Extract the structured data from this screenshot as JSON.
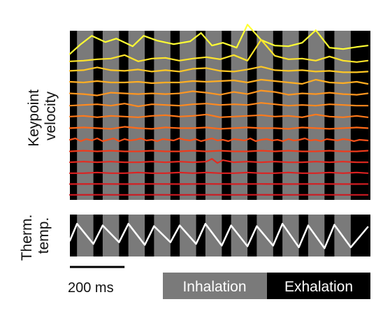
{
  "chart_data": [
    {
      "type": "line",
      "panel": "keypoint-velocity",
      "ylabel_lines": [
        "Keypoint",
        "velocity"
      ],
      "background_color": "#000000",
      "phase_colors": {
        "inhalation": "#7a7a7a",
        "exhalation": "#000000"
      },
      "inhalation_periods_ms": [
        [
          26,
          86
        ],
        [
          120,
          180
        ],
        [
          214,
          274
        ],
        [
          308,
          368
        ],
        [
          402,
          462
        ],
        [
          496,
          556
        ],
        [
          590,
          650
        ],
        [
          684,
          744
        ],
        [
          778,
          838
        ],
        [
          872,
          932
        ],
        [
          968,
          1028
        ]
      ],
      "time_range_ms": [
        0,
        1100
      ],
      "traces": [
        {
          "color": "#ffff33",
          "x": [
            0,
            40,
            80,
            130,
            170,
            230,
            270,
            320,
            380,
            440,
            480,
            520,
            560,
            610,
            650,
            700,
            750,
            800,
            850,
            900,
            950,
            1000,
            1050,
            1090
          ],
          "y": [
            26,
            40,
            52,
            43,
            48,
            37,
            52,
            45,
            40,
            44,
            56,
            38,
            42,
            35,
            68,
            46,
            38,
            37,
            42,
            60,
            35,
            33,
            36,
            38
          ]
        },
        {
          "color": "#ffe52a",
          "x": [
            0,
            50,
            100,
            150,
            200,
            250,
            300,
            350,
            400,
            450,
            500,
            550,
            600,
            650,
            700,
            750,
            800,
            850,
            900,
            950,
            1000,
            1050,
            1090
          ],
          "y": [
            29,
            30,
            32,
            33,
            38,
            29,
            33,
            34,
            30,
            33,
            35,
            32,
            38,
            30,
            60,
            37,
            32,
            33,
            30,
            36,
            30,
            28,
            30
          ]
        },
        {
          "color": "#ffc824",
          "x": [
            0,
            50,
            100,
            150,
            200,
            250,
            300,
            350,
            400,
            450,
            500,
            550,
            600,
            650,
            700,
            750,
            800,
            850,
            900,
            950,
            1000,
            1050,
            1090
          ],
          "y": [
            29,
            30,
            34,
            30,
            29,
            31,
            28,
            30,
            28,
            32,
            33,
            29,
            28,
            31,
            35,
            30,
            29,
            30,
            28,
            29,
            27,
            27,
            28
          ]
        },
        {
          "color": "#ffae22",
          "x": [
            0,
            50,
            100,
            150,
            200,
            250,
            300,
            350,
            400,
            450,
            500,
            550,
            600,
            650,
            700,
            750,
            800,
            850,
            900,
            950,
            1000,
            1050,
            1090
          ],
          "y": [
            27,
            26,
            28,
            26,
            26,
            27,
            25,
            26,
            26,
            28,
            27,
            28,
            29,
            26,
            30,
            28,
            26,
            24,
            30,
            26,
            25,
            27,
            24
          ]
        },
        {
          "color": "#ff9620",
          "x": [
            0,
            50,
            100,
            150,
            200,
            250,
            300,
            350,
            400,
            450,
            500,
            550,
            600,
            650,
            700,
            750,
            800,
            850,
            900,
            950,
            1000,
            1050,
            1090
          ],
          "y": [
            24,
            23,
            21,
            25,
            24,
            23,
            24,
            23,
            24,
            27,
            25,
            22,
            26,
            23,
            28,
            26,
            22,
            24,
            23,
            25,
            23,
            22,
            24
          ]
        },
        {
          "color": "#ff8a1e",
          "x": [
            0,
            50,
            100,
            150,
            200,
            250,
            300,
            350,
            400,
            450,
            500,
            550,
            600,
            650,
            700,
            750,
            800,
            850,
            900,
            950,
            1000,
            1050,
            1090
          ],
          "y": [
            20,
            21,
            22,
            20,
            23,
            19,
            22,
            21,
            20,
            22,
            23,
            21,
            22,
            21,
            24,
            22,
            20,
            21,
            20,
            22,
            21,
            20,
            20
          ]
        },
        {
          "color": "#ff7a1b",
          "x": [
            0,
            50,
            100,
            150,
            200,
            250,
            300,
            350,
            400,
            450,
            500,
            550,
            600,
            650,
            700,
            750,
            800,
            850,
            900,
            950,
            1000,
            1050,
            1090
          ],
          "y": [
            18,
            19,
            17,
            19,
            18,
            17,
            19,
            20,
            18,
            19,
            21,
            17,
            18,
            19,
            20,
            18,
            19,
            17,
            21,
            18,
            17,
            19,
            17
          ]
        },
        {
          "color": "#ff6a18",
          "x": [
            0,
            50,
            100,
            150,
            200,
            250,
            300,
            350,
            400,
            450,
            500,
            550,
            600,
            650,
            700,
            750,
            800,
            850,
            900,
            950,
            1000,
            1050,
            1090
          ],
          "y": [
            15,
            16,
            15,
            14,
            17,
            15,
            14,
            16,
            15,
            15,
            16,
            14,
            15,
            16,
            15,
            15,
            14,
            16,
            15,
            14,
            15,
            16,
            15
          ]
        },
        {
          "color": "#f5511a",
          "x": [
            0,
            20,
            40,
            60,
            80,
            100,
            120,
            140,
            160,
            180,
            200,
            220,
            240,
            260,
            280,
            300,
            320,
            340,
            360,
            380,
            400,
            420,
            440,
            460,
            480,
            500,
            520,
            540,
            560,
            580,
            600,
            620,
            640,
            660,
            680,
            700,
            720,
            740,
            760,
            780,
            800,
            820,
            840,
            860,
            880,
            900,
            920,
            940,
            960,
            980,
            1000,
            1020,
            1040,
            1060,
            1090
          ],
          "y": [
            12,
            14,
            10,
            13,
            11,
            14,
            10,
            12,
            14,
            10,
            13,
            11,
            12,
            14,
            11,
            12,
            10,
            13,
            12,
            11,
            14,
            12,
            11,
            13,
            10,
            12,
            14,
            11,
            12,
            10,
            13,
            12,
            11,
            14,
            10,
            12,
            13,
            11,
            12,
            10,
            13,
            11,
            12,
            14,
            11,
            12,
            10,
            13,
            12,
            11,
            13,
            12,
            10,
            12,
            11
          ]
        },
        {
          "color": "#ee3a1c",
          "x": [
            0,
            50,
            100,
            150,
            200,
            250,
            300,
            350,
            400,
            450,
            500,
            550,
            600,
            650,
            700,
            750,
            800,
            850,
            900,
            950,
            1000,
            1050,
            1090
          ],
          "y": [
            9,
            10,
            9,
            10,
            9,
            9,
            10,
            9,
            9,
            10,
            9,
            10,
            9,
            9,
            10,
            9,
            10,
            9,
            9,
            10,
            9,
            9,
            10
          ]
        },
        {
          "color": "#e52a20",
          "x": [
            0,
            50,
            100,
            150,
            200,
            250,
            300,
            350,
            400,
            450,
            500,
            520,
            540,
            560,
            600,
            650,
            700,
            750,
            800,
            850,
            900,
            950,
            1000,
            1050,
            1090
          ],
          "y": [
            7,
            8,
            7,
            8,
            7,
            7,
            8,
            7,
            8,
            7,
            8,
            12,
            6,
            10,
            7,
            8,
            7,
            8,
            7,
            7,
            8,
            7,
            8,
            7,
            7
          ]
        },
        {
          "color": "#dd2222",
          "x": [
            0,
            50,
            100,
            150,
            200,
            250,
            300,
            350,
            400,
            450,
            500,
            550,
            600,
            650,
            700,
            750,
            800,
            850,
            900,
            950,
            1000,
            1050,
            1090
          ],
          "y": [
            5,
            5,
            6,
            5,
            5,
            6,
            5,
            5,
            6,
            5,
            6,
            5,
            5,
            6,
            5,
            5,
            6,
            5,
            5,
            6,
            5,
            6,
            5
          ]
        },
        {
          "color": "#d41e22",
          "x": [
            0,
            100,
            200,
            300,
            400,
            500,
            600,
            700,
            800,
            900,
            1000,
            1090
          ],
          "y": [
            3,
            3.2,
            3,
            3.2,
            3,
            3.2,
            3,
            3.2,
            3,
            3.2,
            3,
            3.1
          ]
        },
        {
          "color": "#cc1a22",
          "x": [
            0,
            100,
            200,
            300,
            400,
            500,
            600,
            700,
            800,
            900,
            1000,
            1090
          ],
          "y": [
            1.2,
            1.3,
            1.2,
            1.3,
            1.2,
            1.3,
            1.2,
            1.3,
            1.2,
            1.3,
            1.2,
            1.2
          ]
        }
      ]
    },
    {
      "type": "line",
      "panel": "thermistor-temperature",
      "ylabel_lines": [
        "Therm.",
        "temp."
      ],
      "background_color": "#000000",
      "series_color": "#ffffff",
      "time_range_ms": [
        0,
        1100
      ],
      "x": [
        0,
        26,
        86,
        120,
        180,
        214,
        274,
        308,
        368,
        402,
        462,
        496,
        556,
        590,
        650,
        684,
        744,
        778,
        838,
        872,
        932,
        968,
        1028,
        1090
      ],
      "y": [
        0.35,
        0.85,
        0.25,
        0.8,
        0.3,
        0.85,
        0.22,
        0.78,
        0.3,
        0.8,
        0.25,
        0.85,
        0.2,
        0.8,
        0.18,
        0.78,
        0.2,
        0.85,
        0.15,
        0.8,
        0.12,
        0.82,
        0.15,
        0.75
      ]
    }
  ],
  "scale_bar": {
    "label": "200 ms",
    "length_ms": 200
  },
  "legend": {
    "inhalation_label": "Inhalation",
    "exhalation_label": "Exhalation"
  }
}
